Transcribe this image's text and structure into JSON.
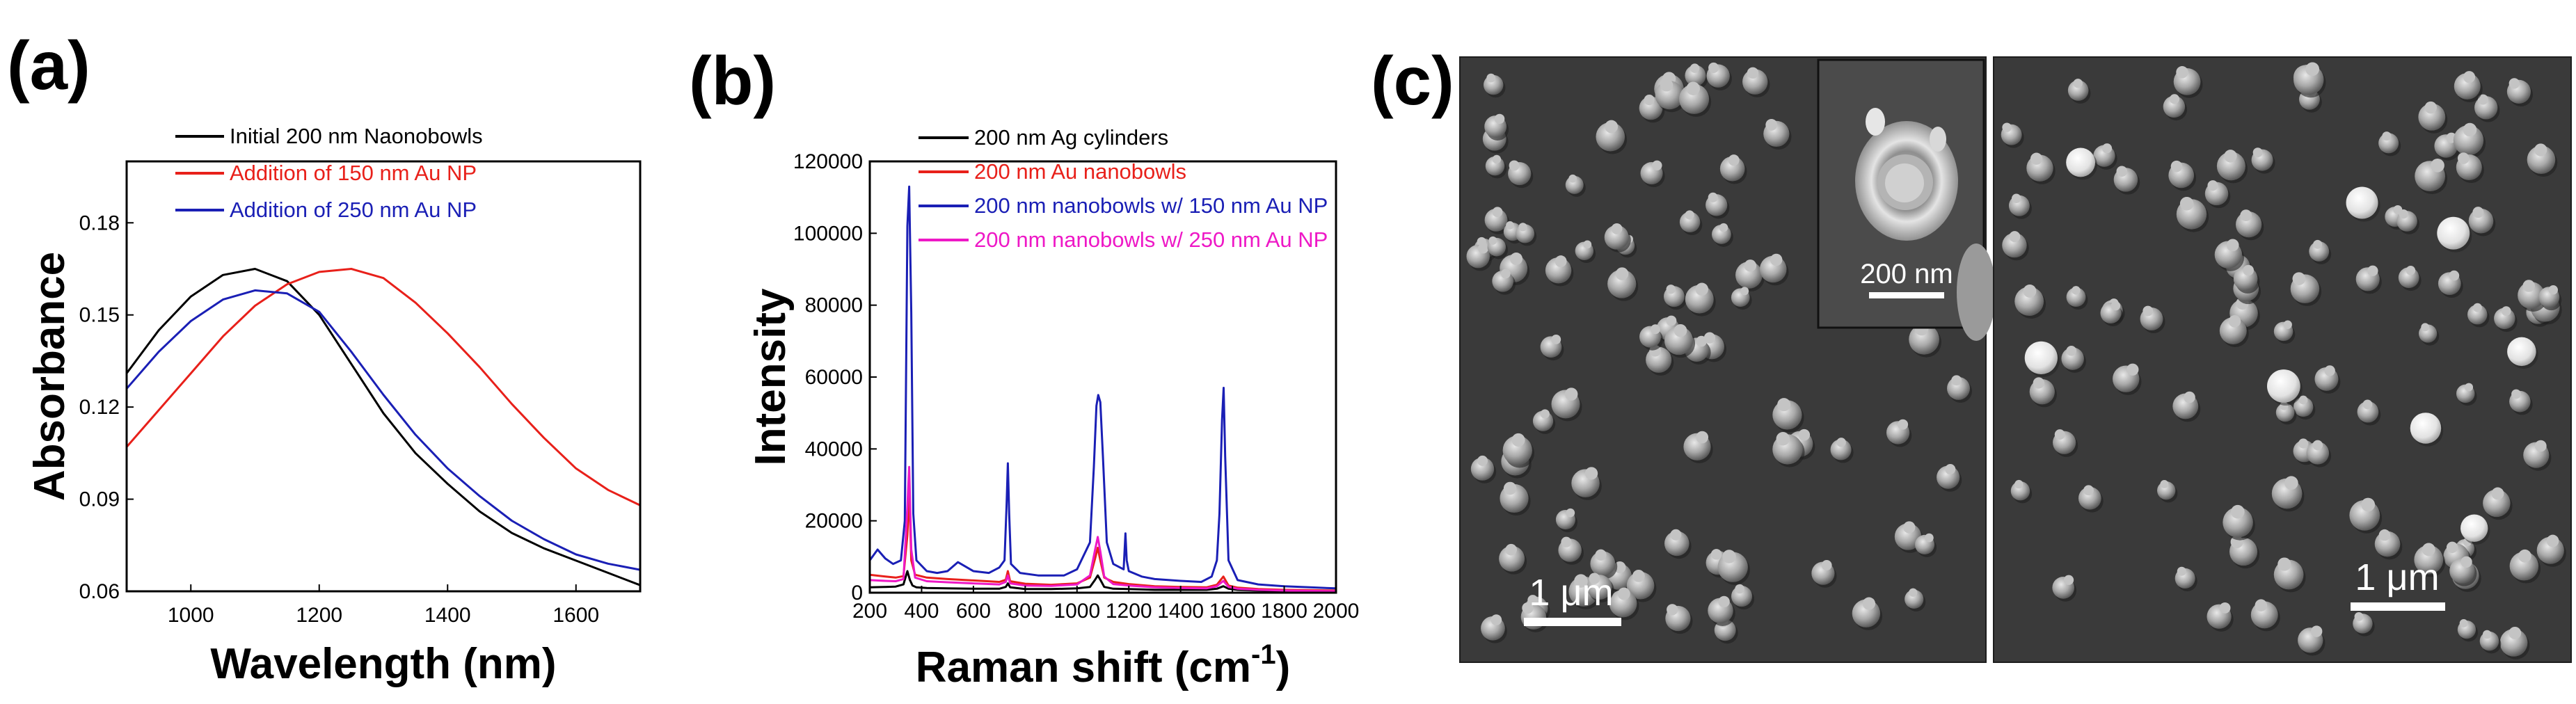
{
  "chart_data": [
    {
      "panel_label": "(a)",
      "type": "line",
      "xlabel": "Wavelength (nm)",
      "ylabel": "Absorbance",
      "xlim": [
        900,
        1700
      ],
      "ylim": [
        0.06,
        0.2
      ],
      "xticks": [
        1000,
        1200,
        1400,
        1600
      ],
      "yticks": [
        0.06,
        0.09,
        0.12,
        0.15,
        0.18
      ],
      "ytick_labels": [
        "0.06",
        "0.09",
        "0.12",
        "0.15",
        "0.18"
      ],
      "legend_position": "top-right",
      "series": [
        {
          "name": "Initial 200 nm Naonobowls",
          "color": "#000000",
          "x": [
            900,
            950,
            1000,
            1050,
            1100,
            1150,
            1200,
            1250,
            1300,
            1350,
            1400,
            1450,
            1500,
            1550,
            1600,
            1650,
            1700
          ],
          "y": [
            0.131,
            0.145,
            0.156,
            0.163,
            0.165,
            0.161,
            0.15,
            0.134,
            0.118,
            0.105,
            0.095,
            0.086,
            0.079,
            0.074,
            0.07,
            0.066,
            0.062
          ]
        },
        {
          "name": "Addition of 150 nm Au NP",
          "color": "#e8201a",
          "x": [
            900,
            950,
            1000,
            1050,
            1100,
            1150,
            1200,
            1250,
            1300,
            1350,
            1400,
            1450,
            1500,
            1550,
            1600,
            1650,
            1700
          ],
          "y": [
            0.107,
            0.119,
            0.131,
            0.143,
            0.153,
            0.16,
            0.164,
            0.165,
            0.162,
            0.154,
            0.144,
            0.133,
            0.121,
            0.11,
            0.1,
            0.093,
            0.088
          ]
        },
        {
          "name": "Addition of 250 nm Au NP",
          "color": "#1a1fb5",
          "x": [
            900,
            950,
            1000,
            1050,
            1100,
            1150,
            1200,
            1250,
            1300,
            1350,
            1400,
            1450,
            1500,
            1550,
            1600,
            1650,
            1700
          ],
          "y": [
            0.126,
            0.138,
            0.148,
            0.155,
            0.158,
            0.157,
            0.151,
            0.138,
            0.124,
            0.111,
            0.1,
            0.091,
            0.083,
            0.077,
            0.072,
            0.069,
            0.067
          ]
        }
      ]
    },
    {
      "panel_label": "(b)",
      "type": "line",
      "xlabel_main": "Raman shift (cm",
      "xlabel_sup": "-1",
      "xlabel_close": ")",
      "ylabel": "Intensity",
      "xlim": [
        200,
        2000
      ],
      "ylim": [
        0,
        120000
      ],
      "xticks": [
        200,
        400,
        600,
        800,
        1000,
        1200,
        1400,
        1600,
        1800,
        2000
      ],
      "yticks": [
        0,
        20000,
        40000,
        60000,
        80000,
        100000,
        120000
      ],
      "legend_position": "top-right",
      "series": [
        {
          "name": "200 nm Ag cylinders",
          "color": "#000000",
          "x": [
            200,
            260,
            300,
            330,
            345,
            355,
            365,
            380,
            420,
            500,
            600,
            700,
            725,
            733,
            742,
            800,
            900,
            1000,
            1050,
            1070,
            1080,
            1090,
            1105,
            1140,
            1200,
            1300,
            1400,
            1500,
            1540,
            1565,
            1585,
            1620,
            1700,
            1800,
            1900,
            2000
          ],
          "y": [
            1500,
            1600,
            1700,
            2300,
            6000,
            3500,
            2000,
            1500,
            1300,
            1200,
            1100,
            1100,
            1600,
            2600,
            1500,
            1000,
            1000,
            1200,
            1600,
            3600,
            4800,
            3600,
            1600,
            1100,
            1000,
            800,
            800,
            800,
            1100,
            1800,
            1100,
            800,
            600,
            500,
            400,
            400
          ]
        },
        {
          "name": "200 nm Au nanobowls",
          "color": "#e8201a",
          "x": [
            200,
            260,
            300,
            330,
            345,
            352,
            360,
            375,
            420,
            500,
            600,
            700,
            725,
            733,
            742,
            800,
            900,
            1000,
            1050,
            1070,
            1080,
            1090,
            1105,
            1140,
            1200,
            1300,
            1400,
            1500,
            1540,
            1565,
            1585,
            1620,
            1700,
            1800,
            1900,
            2000
          ],
          "y": [
            5000,
            4500,
            4200,
            4600,
            16000,
            28000,
            9000,
            5000,
            4200,
            3800,
            3400,
            3000,
            3600,
            6000,
            3200,
            2500,
            2200,
            2600,
            4200,
            9500,
            12500,
            9000,
            4200,
            3000,
            2400,
            1800,
            1600,
            1500,
            2200,
            4500,
            2000,
            1400,
            1000,
            800,
            700,
            600
          ]
        },
        {
          "name": "200 nm nanobowls w/ 150 nm Au NP",
          "color": "#1a1fb5",
          "x": [
            200,
            230,
            260,
            290,
            320,
            335,
            345,
            352,
            360,
            368,
            380,
            420,
            460,
            500,
            540,
            600,
            660,
            700,
            720,
            728,
            733,
            738,
            745,
            780,
            850,
            950,
            1000,
            1050,
            1065,
            1075,
            1082,
            1090,
            1100,
            1115,
            1140,
            1180,
            1187,
            1192,
            1200,
            1250,
            1300,
            1400,
            1480,
            1520,
            1540,
            1550,
            1560,
            1566,
            1572,
            1585,
            1620,
            1700,
            1800,
            1900,
            2000
          ],
          "y": [
            9000,
            12000,
            9500,
            8000,
            9000,
            20000,
            102000,
            113000,
            78000,
            22000,
            9000,
            6000,
            5500,
            6000,
            8500,
            6000,
            5500,
            7000,
            9000,
            24000,
            36000,
            22000,
            8000,
            5500,
            4800,
            4800,
            6500,
            14000,
            35000,
            52000,
            55000,
            53000,
            38000,
            14000,
            8000,
            6500,
            16500,
            9000,
            6000,
            4500,
            3800,
            3300,
            3000,
            4500,
            9000,
            22000,
            48000,
            57000,
            38000,
            9000,
            3500,
            2300,
            1800,
            1500,
            1200
          ]
        },
        {
          "name": "200 nm nanobowls w/ 250 nm Au NP",
          "color": "#ee18c6",
          "x": [
            200,
            260,
            300,
            330,
            345,
            352,
            360,
            375,
            420,
            500,
            600,
            700,
            725,
            733,
            742,
            800,
            900,
            1000,
            1050,
            1070,
            1080,
            1090,
            1105,
            1140,
            1200,
            1300,
            1400,
            1500,
            1540,
            1565,
            1585,
            1620,
            1700,
            1800,
            1900,
            2000
          ],
          "y": [
            3500,
            3300,
            3200,
            3800,
            24000,
            35000,
            12000,
            4200,
            3200,
            2900,
            2600,
            2300,
            3000,
            4800,
            2600,
            2000,
            1900,
            2300,
            4800,
            12000,
            15500,
            11500,
            4500,
            2400,
            2000,
            1500,
            1300,
            1200,
            1800,
            3300,
            1600,
            1100,
            800,
            600,
            500,
            400
          ]
        }
      ]
    }
  ],
  "panel_c": {
    "label": "(c)",
    "inset_scale": "200 nm",
    "left_scale": "1 μm",
    "right_scale": "1 μm"
  }
}
